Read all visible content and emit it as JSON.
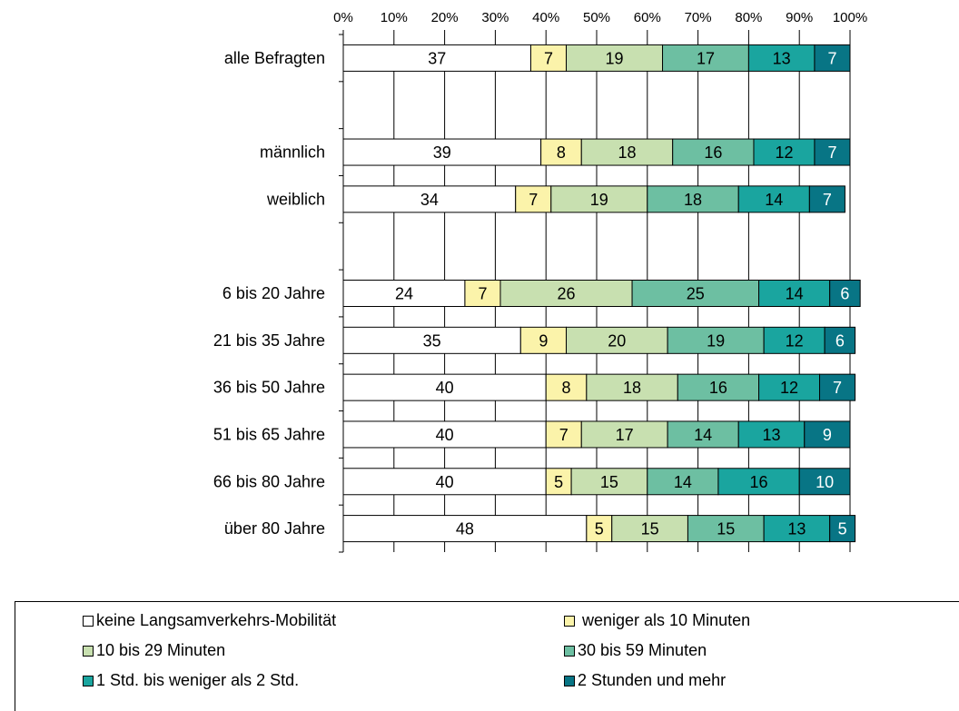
{
  "chart_data": {
    "type": "bar",
    "orientation": "horizontal",
    "stacked": "percent",
    "xlim": [
      0,
      100
    ],
    "x_ticks": [
      "0%",
      "10%",
      "20%",
      "30%",
      "40%",
      "50%",
      "60%",
      "70%",
      "80%",
      "90%",
      "100%"
    ],
    "categories": [
      "alle Befragten",
      "",
      "männlich",
      "weiblich",
      "",
      "6 bis 20 Jahre",
      "21 bis 35 Jahre",
      "36 bis 50 Jahre",
      "51 bis 65 Jahre",
      "66 bis 80 Jahre",
      "über 80 Jahre"
    ],
    "series": [
      {
        "name": "keine Langsamverkehrs-Mobilität",
        "color": "#ffffff",
        "label_color": "#000000",
        "values": [
          37,
          null,
          39,
          34,
          null,
          24,
          35,
          40,
          40,
          40,
          48
        ]
      },
      {
        "name": "weniger als 10 Minuten",
        "color": "#fbf3aa",
        "label_color": "#000000",
        "values": [
          7,
          null,
          8,
          7,
          null,
          7,
          9,
          8,
          7,
          5,
          5
        ]
      },
      {
        "name": "10 bis 29 Minuten",
        "color": "#c8e0b0",
        "label_color": "#000000",
        "values": [
          19,
          null,
          18,
          19,
          null,
          26,
          20,
          18,
          17,
          15,
          15
        ]
      },
      {
        "name": "30 bis 59 Minuten",
        "color": "#6dbfa2",
        "label_color": "#000000",
        "values": [
          17,
          null,
          16,
          18,
          null,
          25,
          19,
          16,
          14,
          14,
          15
        ]
      },
      {
        "name": "1 Std. bis weniger als 2 Std.",
        "color": "#1aa59f",
        "label_color": "#000000",
        "values": [
          13,
          null,
          12,
          14,
          null,
          14,
          12,
          12,
          13,
          16,
          13
        ]
      },
      {
        "name": "2 Stunden und mehr",
        "color": "#087585",
        "label_color": "#ffffff",
        "values": [
          7,
          null,
          7,
          7,
          null,
          6,
          6,
          7,
          9,
          10,
          5
        ]
      }
    ],
    "grid": true,
    "legend_position": "bottom"
  },
  "legend": [
    {
      "label": "keine Langsamverkehrs-Mobilität",
      "color": "#ffffff"
    },
    {
      "label": " weniger als 10 Minuten",
      "color": "#fbf3aa"
    },
    {
      "label": "10 bis 29 Minuten",
      "color": "#c8e0b0"
    },
    {
      "label": "30 bis 59 Minuten",
      "color": "#6dbfa2"
    },
    {
      "label": "1 Std. bis weniger als 2 Std.",
      "color": "#1aa59f"
    },
    {
      "label": "2 Stunden und mehr",
      "color": "#087585"
    }
  ]
}
